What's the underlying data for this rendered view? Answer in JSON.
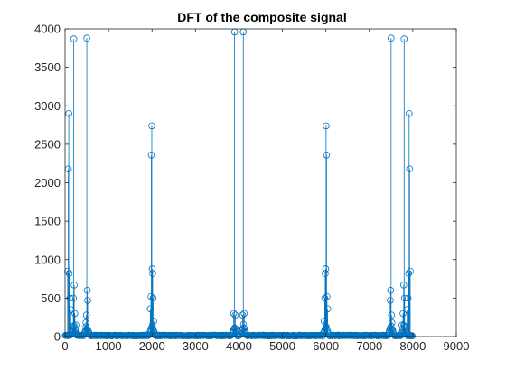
{
  "chart_data": {
    "type": "stem",
    "title": "DFT of the composite signal",
    "xlabel": "",
    "ylabel": "",
    "xlim": [
      0,
      9000
    ],
    "ylim": [
      0,
      4000
    ],
    "xticks": [
      0,
      1000,
      2000,
      3000,
      4000,
      5000,
      6000,
      7000,
      8000,
      9000
    ],
    "yticks": [
      0,
      500,
      1000,
      1500,
      2000,
      2500,
      3000,
      3500,
      4000
    ],
    "grid": false,
    "legend": "none",
    "n_samples": 8000,
    "series_color": "#0072BD",
    "axis_color": "#262626",
    "peaks": [
      {
        "x": 60,
        "y": 850
      },
      {
        "x": 75,
        "y": 2180
      },
      {
        "x": 85,
        "y": 2900
      },
      {
        "x": 95,
        "y": 820
      },
      {
        "x": 110,
        "y": 500
      },
      {
        "x": 130,
        "y": 350
      },
      {
        "x": 190,
        "y": 500
      },
      {
        "x": 200,
        "y": 3870
      },
      {
        "x": 210,
        "y": 670
      },
      {
        "x": 225,
        "y": 300
      },
      {
        "x": 250,
        "y": 150
      },
      {
        "x": 480,
        "y": 180
      },
      {
        "x": 490,
        "y": 280
      },
      {
        "x": 500,
        "y": 3880
      },
      {
        "x": 510,
        "y": 600
      },
      {
        "x": 520,
        "y": 470
      },
      {
        "x": 1960,
        "y": 360
      },
      {
        "x": 1975,
        "y": 520
      },
      {
        "x": 1985,
        "y": 2360
      },
      {
        "x": 1995,
        "y": 2740
      },
      {
        "x": 2005,
        "y": 880
      },
      {
        "x": 2015,
        "y": 820
      },
      {
        "x": 2025,
        "y": 500
      },
      {
        "x": 2040,
        "y": 200
      },
      {
        "x": 3880,
        "y": 300
      },
      {
        "x": 3900,
        "y": 3960
      },
      {
        "x": 3915,
        "y": 280
      },
      {
        "x": 4085,
        "y": 280
      },
      {
        "x": 4100,
        "y": 3960
      },
      {
        "x": 4120,
        "y": 300
      },
      {
        "x": 5960,
        "y": 200
      },
      {
        "x": 5975,
        "y": 500
      },
      {
        "x": 5985,
        "y": 820
      },
      {
        "x": 5995,
        "y": 880
      },
      {
        "x": 6005,
        "y": 2740
      },
      {
        "x": 6015,
        "y": 2360
      },
      {
        "x": 6025,
        "y": 520
      },
      {
        "x": 6040,
        "y": 360
      },
      {
        "x": 7480,
        "y": 470
      },
      {
        "x": 7490,
        "y": 600
      },
      {
        "x": 7500,
        "y": 3880
      },
      {
        "x": 7510,
        "y": 280
      },
      {
        "x": 7520,
        "y": 180
      },
      {
        "x": 7750,
        "y": 150
      },
      {
        "x": 7775,
        "y": 300
      },
      {
        "x": 7790,
        "y": 670
      },
      {
        "x": 7800,
        "y": 3870
      },
      {
        "x": 7810,
        "y": 500
      },
      {
        "x": 7870,
        "y": 350
      },
      {
        "x": 7890,
        "y": 500
      },
      {
        "x": 7905,
        "y": 820
      },
      {
        "x": 7915,
        "y": 2900
      },
      {
        "x": 7925,
        "y": 2180
      },
      {
        "x": 7940,
        "y": 850
      }
    ],
    "peak_centers": [
      200,
      500,
      2000,
      3900,
      4100,
      6000,
      7500,
      7800
    ]
  }
}
